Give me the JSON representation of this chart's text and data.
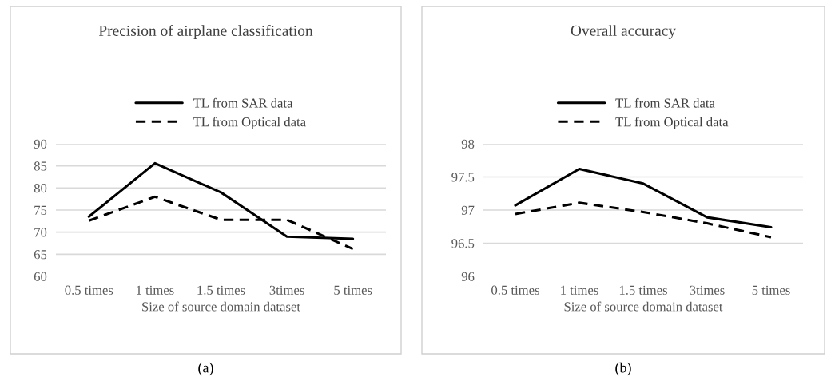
{
  "chart_data": [
    {
      "type": "line",
      "title": "Precision of airplane classification",
      "xlabel": "Size of source domain dataset",
      "categories": [
        "0.5 times",
        "1 times",
        "1.5 times",
        "3times",
        "5 times"
      ],
      "series": [
        {
          "name": "TL from SAR data",
          "color": "#000000",
          "line_style": "solid",
          "values": [
            73.5,
            85.6,
            79,
            69,
            68.5
          ]
        },
        {
          "name": "TL from Optical data",
          "color": "#000000",
          "line_style": "dashed",
          "values": [
            72.6,
            78,
            72.8,
            72.8,
            66.2
          ]
        }
      ],
      "ylim": [
        60,
        90
      ],
      "yticks": [
        60,
        65,
        70,
        75,
        80,
        85,
        90
      ],
      "grid": "y",
      "legend": "top",
      "marker": "none",
      "annotations": [
        "(a)"
      ]
    },
    {
      "type": "line",
      "title": "Overall accuracy",
      "xlabel": "Size of source domain dataset",
      "categories": [
        "0.5 times",
        "1 times",
        "1.5 times",
        "3times",
        "5 times"
      ],
      "series": [
        {
          "name": "TL from SAR data",
          "color": "#000000",
          "line_style": "solid",
          "values": [
            97.07,
            97.62,
            97.4,
            96.89,
            96.74
          ]
        },
        {
          "name": "TL from Optical data",
          "color": "#000000",
          "line_style": "dashed",
          "values": [
            96.94,
            97.11,
            96.97,
            96.8,
            96.59
          ]
        }
      ],
      "ylim": [
        96,
        98
      ],
      "yticks": [
        96,
        96.5,
        97,
        97.5,
        98
      ],
      "grid": "y",
      "legend": "top",
      "marker": "none",
      "annotations": [
        "(b)"
      ]
    }
  ]
}
